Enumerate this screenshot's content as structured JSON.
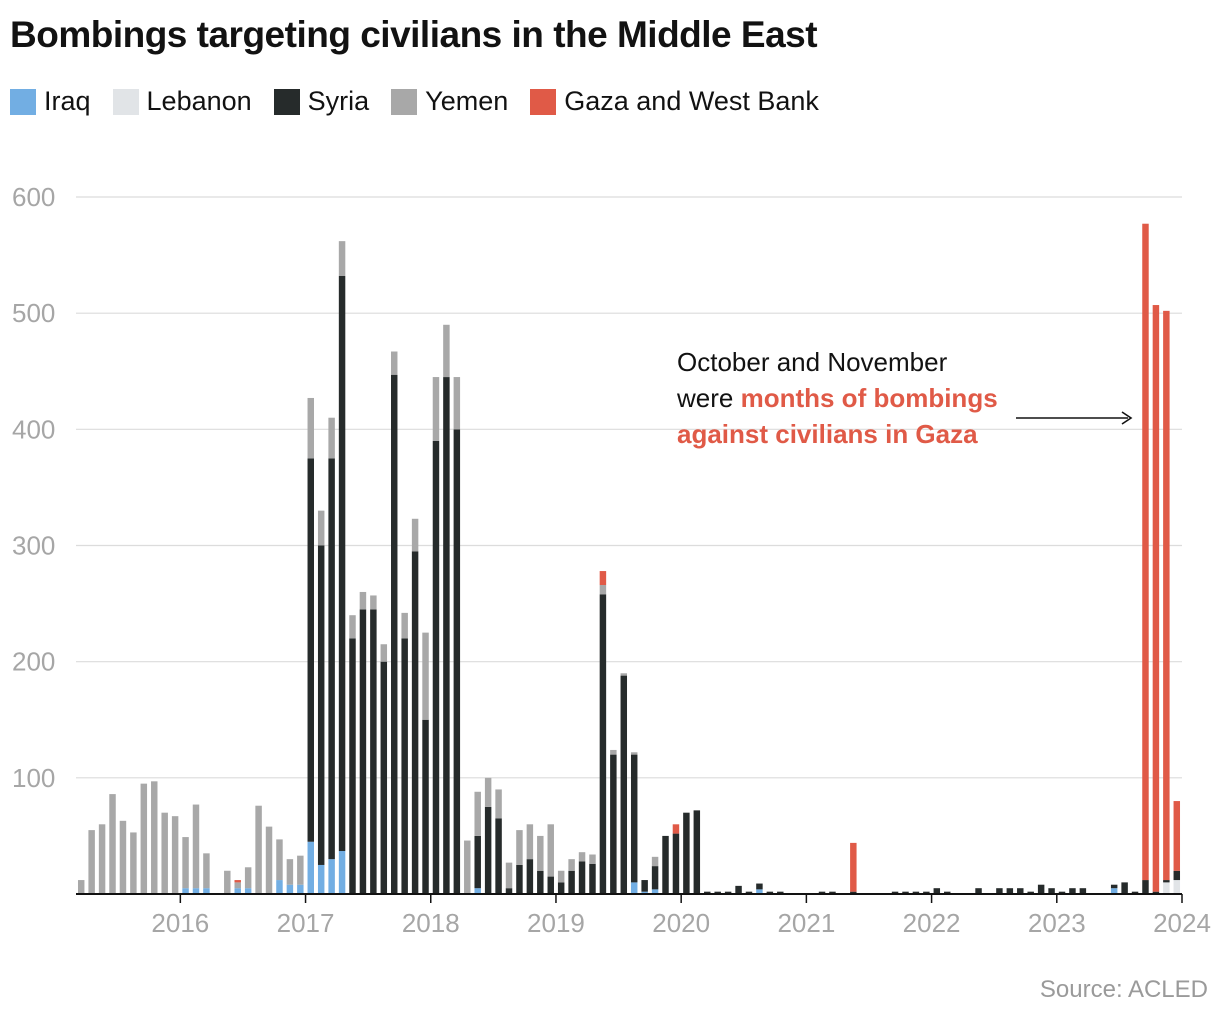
{
  "title": "Bombings targeting civilians in the Middle East",
  "source": "Source: ACLED",
  "annotation": {
    "line1": "October and November",
    "line2_prefix": "were ",
    "line2_highlight": "months of bombings",
    "line3_highlight": "against civilians in Gaza"
  },
  "chart_data": {
    "type": "bar",
    "stacked": true,
    "title": "Bombings targeting civilians in the Middle East",
    "xlabel": "",
    "ylabel": "",
    "ylim": [
      0,
      630
    ],
    "yticks": [
      100,
      200,
      300,
      400,
      500,
      600
    ],
    "xticks": [
      "2016",
      "2017",
      "2018",
      "2019",
      "2020",
      "2021",
      "2022",
      "2023",
      "2024"
    ],
    "grid": true,
    "legend_position": "top-left",
    "x_start": "2015-03",
    "x_end": "2024-01",
    "categories": [
      "2015-03",
      "2015-04",
      "2015-05",
      "2015-06",
      "2015-07",
      "2015-08",
      "2015-09",
      "2015-10",
      "2015-11",
      "2015-12",
      "2016-01",
      "2016-02",
      "2016-03",
      "2016-04",
      "2016-05",
      "2016-06",
      "2016-07",
      "2016-08",
      "2016-09",
      "2016-10",
      "2016-11",
      "2016-12",
      "2017-01",
      "2017-02",
      "2017-03",
      "2017-04",
      "2017-05",
      "2017-06",
      "2017-07",
      "2017-08",
      "2017-09",
      "2017-10",
      "2017-11",
      "2017-12",
      "2018-01",
      "2018-02",
      "2018-03",
      "2018-04",
      "2018-05",
      "2018-06",
      "2018-07",
      "2018-08",
      "2018-09",
      "2018-10",
      "2018-11",
      "2018-12",
      "2019-01",
      "2019-02",
      "2019-03",
      "2019-04",
      "2019-05",
      "2019-06",
      "2019-07",
      "2019-08",
      "2019-09",
      "2019-10",
      "2019-11",
      "2019-12",
      "2020-01",
      "2020-02",
      "2020-03",
      "2020-04",
      "2020-05",
      "2020-06",
      "2020-07",
      "2020-08",
      "2020-09",
      "2020-10",
      "2020-11",
      "2020-12",
      "2021-01",
      "2021-02",
      "2021-03",
      "2021-04",
      "2021-05",
      "2021-06",
      "2021-07",
      "2021-08",
      "2021-09",
      "2021-10",
      "2021-11",
      "2021-12",
      "2022-01",
      "2022-02",
      "2022-03",
      "2022-04",
      "2022-05",
      "2022-06",
      "2022-07",
      "2022-08",
      "2022-09",
      "2022-10",
      "2022-11",
      "2022-12",
      "2023-01",
      "2023-02",
      "2023-03",
      "2023-04",
      "2023-05",
      "2023-06",
      "2023-07",
      "2023-08",
      "2023-09",
      "2023-10",
      "2023-11",
      "2023-12"
    ],
    "series": [
      {
        "name": "Iraq",
        "color": "#72aee3",
        "values": [
          0,
          0,
          0,
          0,
          0,
          0,
          0,
          0,
          0,
          0,
          5,
          5,
          5,
          0,
          0,
          5,
          5,
          0,
          0,
          12,
          8,
          8,
          45,
          25,
          30,
          37,
          0,
          0,
          0,
          0,
          0,
          0,
          0,
          0,
          0,
          0,
          0,
          0,
          5,
          0,
          0,
          0,
          0,
          0,
          0,
          0,
          0,
          0,
          0,
          0,
          0,
          0,
          0,
          10,
          2,
          4,
          0,
          0,
          0,
          0,
          0,
          0,
          0,
          0,
          0,
          4,
          0,
          0,
          0,
          0,
          0,
          0,
          0,
          0,
          0,
          0,
          0,
          0,
          0,
          0,
          0,
          0,
          0,
          0,
          0,
          0,
          0,
          0,
          0,
          0,
          0,
          0,
          0,
          0,
          0,
          0,
          0,
          0,
          0,
          5,
          0,
          0,
          0,
          0,
          0,
          0
        ]
      },
      {
        "name": "Lebanon",
        "color": "#e1e4e7",
        "values": [
          0,
          0,
          0,
          0,
          0,
          0,
          0,
          0,
          0,
          0,
          0,
          0,
          0,
          0,
          0,
          0,
          0,
          0,
          0,
          0,
          0,
          0,
          0,
          0,
          0,
          0,
          0,
          0,
          0,
          0,
          0,
          0,
          0,
          0,
          0,
          0,
          0,
          0,
          0,
          0,
          0,
          0,
          0,
          0,
          0,
          0,
          0,
          0,
          0,
          0,
          0,
          0,
          0,
          0,
          0,
          0,
          0,
          0,
          0,
          0,
          0,
          0,
          0,
          0,
          0,
          0,
          0,
          0,
          0,
          0,
          0,
          0,
          0,
          0,
          0,
          0,
          0,
          0,
          0,
          0,
          0,
          0,
          0,
          0,
          0,
          0,
          0,
          0,
          0,
          0,
          0,
          0,
          0,
          0,
          0,
          0,
          0,
          0,
          0,
          0,
          0,
          0,
          0,
          0,
          10,
          12
        ]
      },
      {
        "name": "Syria",
        "color": "#262b2b",
        "values": [
          0,
          0,
          0,
          0,
          0,
          0,
          0,
          0,
          0,
          0,
          0,
          0,
          0,
          0,
          0,
          0,
          0,
          0,
          0,
          0,
          0,
          0,
          330,
          275,
          345,
          495,
          220,
          245,
          245,
          200,
          447,
          220,
          295,
          150,
          390,
          445,
          400,
          0,
          45,
          75,
          65,
          5,
          25,
          30,
          20,
          15,
          10,
          20,
          28,
          26,
          258,
          120,
          188,
          110,
          10,
          20,
          50,
          52,
          70,
          72,
          2,
          2,
          2,
          7,
          2,
          5,
          2,
          2,
          0,
          0,
          0,
          2,
          2,
          0,
          2,
          0,
          0,
          0,
          2,
          2,
          2,
          2,
          5,
          2,
          0,
          0,
          5,
          0,
          5,
          5,
          5,
          2,
          8,
          5,
          2,
          5,
          5,
          0,
          0,
          3,
          10,
          2,
          12,
          2,
          2,
          8
        ]
      },
      {
        "name": "Yemen",
        "color": "#a8a8a8",
        "values": [
          12,
          55,
          60,
          86,
          63,
          53,
          95,
          97,
          70,
          67,
          44,
          72,
          30,
          0,
          20,
          5,
          18,
          76,
          58,
          35,
          22,
          25,
          52,
          30,
          35,
          30,
          20,
          15,
          12,
          15,
          20,
          22,
          28,
          75,
          55,
          45,
          45,
          46,
          38,
          25,
          25,
          22,
          30,
          30,
          30,
          45,
          10,
          10,
          8,
          8,
          8,
          4,
          2,
          2,
          0,
          8,
          0,
          0,
          0,
          0,
          0,
          0,
          0,
          0,
          0,
          0,
          0,
          0,
          0,
          0,
          0,
          0,
          0,
          0,
          0,
          0,
          0,
          0,
          0,
          0,
          0,
          0,
          0,
          0,
          0,
          0,
          0,
          0,
          0,
          0,
          0,
          0,
          0,
          0,
          0,
          0,
          0,
          0,
          0,
          0,
          0,
          0,
          0,
          0,
          0,
          0
        ]
      },
      {
        "name": "Gaza and West Bank",
        "color": "#e05a47",
        "values": [
          0,
          0,
          0,
          0,
          0,
          0,
          0,
          0,
          0,
          0,
          0,
          0,
          0,
          0,
          0,
          2,
          0,
          0,
          0,
          0,
          0,
          0,
          0,
          0,
          0,
          0,
          0,
          0,
          0,
          0,
          0,
          0,
          0,
          0,
          0,
          0,
          0,
          0,
          0,
          0,
          0,
          0,
          0,
          0,
          0,
          0,
          0,
          0,
          0,
          0,
          12,
          0,
          0,
          0,
          0,
          0,
          0,
          8,
          0,
          0,
          0,
          0,
          0,
          0,
          0,
          0,
          0,
          0,
          0,
          0,
          0,
          0,
          0,
          0,
          42,
          0,
          0,
          0,
          0,
          0,
          0,
          0,
          0,
          0,
          0,
          0,
          0,
          0,
          0,
          0,
          0,
          0,
          0,
          0,
          0,
          0,
          0,
          0,
          0,
          0,
          0,
          0,
          565,
          505,
          490,
          60
        ]
      }
    ]
  }
}
